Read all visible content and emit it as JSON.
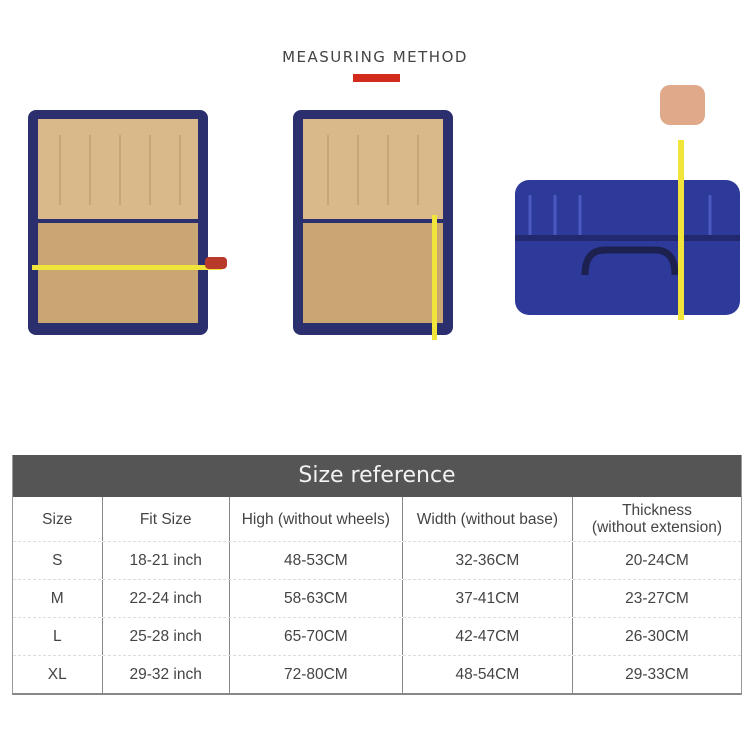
{
  "heading": "MEASURING METHOD",
  "accent_color": "#d42a1c",
  "photos": [
    {
      "icon": "open-suitcase-width-measure-icon"
    },
    {
      "icon": "open-suitcase-height-measure-icon"
    },
    {
      "icon": "closed-suitcase-thickness-measure-icon"
    }
  ],
  "table": {
    "title": "Size reference",
    "headers": [
      "Size",
      "Fit Size",
      "High (without wheels)",
      "Width (without base)",
      "Thickness\n(without extension)"
    ],
    "header_thickness_line1": "Thickness",
    "header_thickness_line2": "(without extension)",
    "rows": [
      [
        "S",
        "18-21 inch",
        "48-53CM",
        "32-36CM",
        "20-24CM"
      ],
      [
        "M",
        "22-24 inch",
        "58-63CM",
        "37-41CM",
        "23-27CM"
      ],
      [
        "L",
        "25-28 inch",
        "65-70CM",
        "42-47CM",
        "26-30CM"
      ],
      [
        "XL",
        "29-32 inch",
        "72-80CM",
        "48-54CM",
        "29-33CM"
      ]
    ]
  }
}
